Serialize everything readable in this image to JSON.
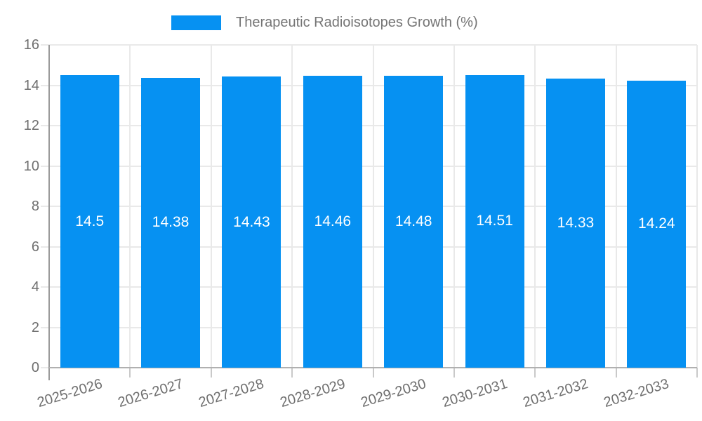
{
  "legend": {
    "label": "Therapeutic Radioisotopes Growth (%)"
  },
  "chart_data": {
    "type": "bar",
    "title": "Therapeutic Radioisotopes Growth (%)",
    "categories": [
      "2025-2026",
      "2026-2027",
      "2027-2028",
      "2028-2029",
      "2029-2030",
      "2030-2031",
      "2031-2032",
      "2032-2033"
    ],
    "values": [
      14.5,
      14.38,
      14.43,
      14.46,
      14.48,
      14.51,
      14.33,
      14.24
    ],
    "bar_labels": [
      "14.5",
      "14.38",
      "14.43",
      "14.46",
      "14.48",
      "14.51",
      "14.33",
      "14.24"
    ],
    "xlabel": "",
    "ylabel": "",
    "ylim": [
      0,
      16
    ],
    "ytick_step": 2,
    "ytick_labels": [
      "0",
      "2",
      "4",
      "6",
      "8",
      "10",
      "12",
      "14",
      "16"
    ],
    "grid": true,
    "legend_position": "top-center",
    "bar_color": "#0691f2",
    "grid_color": "#e9e9e9",
    "axis_color": "#b0b0b0",
    "tick_label_color": "#6f6f6f",
    "value_label_color": "#ffffff"
  }
}
